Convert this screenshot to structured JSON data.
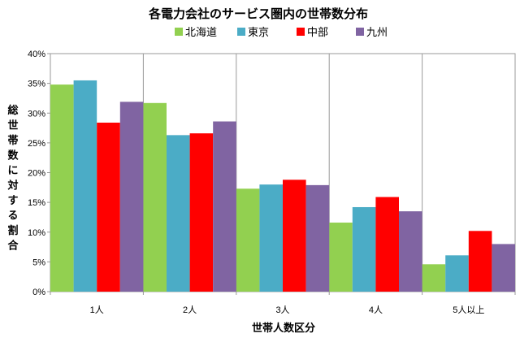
{
  "chart_data": {
    "type": "bar",
    "title": "各電力会社のサービス圏内の世帯数分布",
    "xlabel": "世帯人数区分",
    "ylabel": "総世帯数に対する割合",
    "categories": [
      "1人",
      "2人",
      "3人",
      "4人",
      "5人以上"
    ],
    "ylim": [
      0,
      40
    ],
    "yticks": [
      "0%",
      "5%",
      "10%",
      "15%",
      "20%",
      "25%",
      "30%",
      "35%",
      "40%"
    ],
    "grid": "vertical category separators",
    "legend_position": "top",
    "series": [
      {
        "name": "北海道",
        "color": "#92D050",
        "values": [
          34.8,
          31.7,
          17.3,
          11.6,
          4.6
        ]
      },
      {
        "name": "東京",
        "color": "#4BACC6",
        "values": [
          35.5,
          26.3,
          18.0,
          14.2,
          6.1
        ]
      },
      {
        "name": "中部",
        "color": "#FF0000",
        "values": [
          28.4,
          26.6,
          18.8,
          15.9,
          10.2
        ]
      },
      {
        "name": "九州",
        "color": "#8064A2",
        "values": [
          31.9,
          28.6,
          17.9,
          13.5,
          8.0
        ]
      }
    ]
  }
}
